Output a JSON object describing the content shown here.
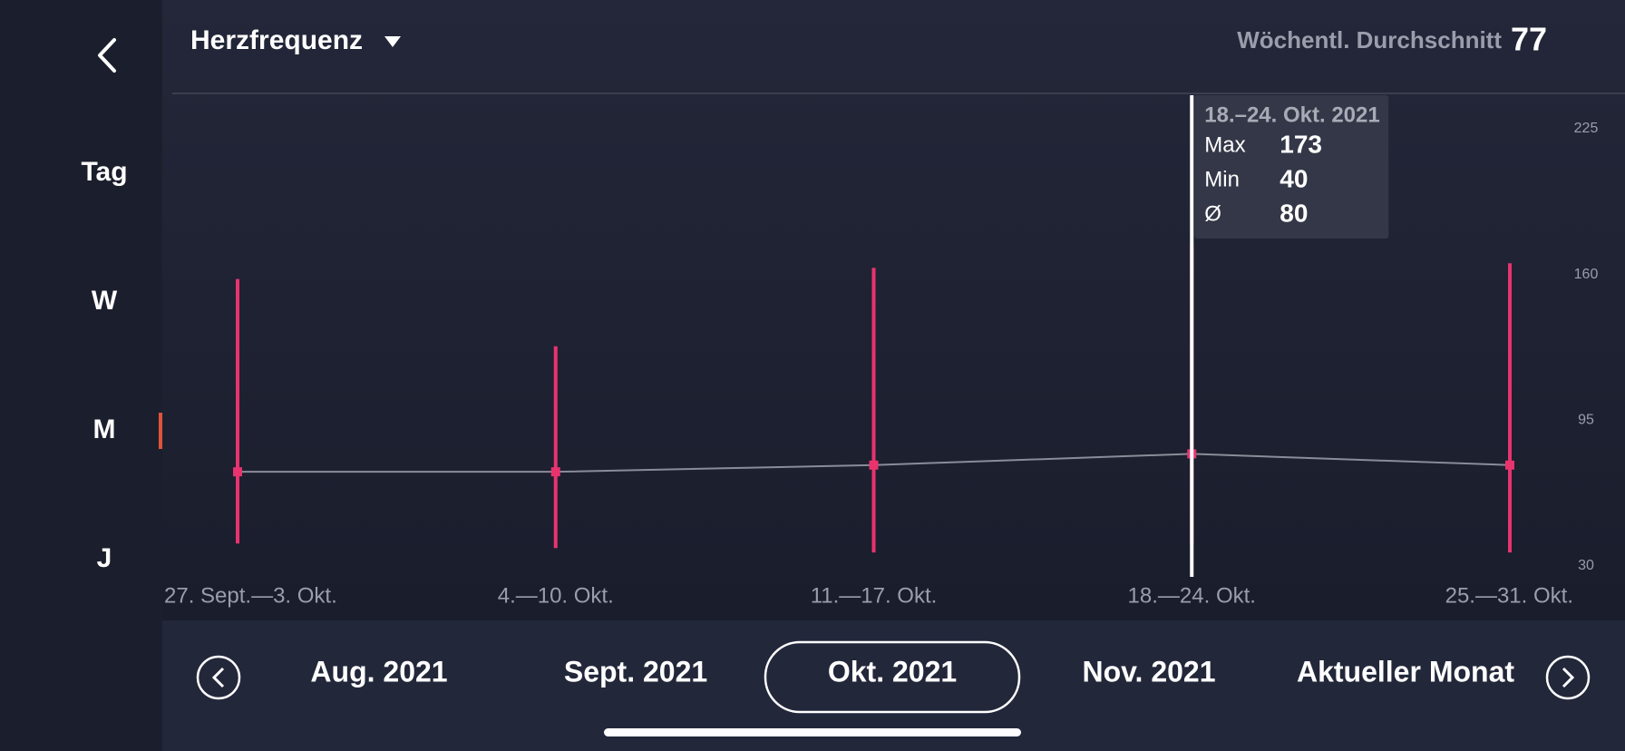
{
  "header": {
    "title": "Herzfrequenz",
    "avg_label": "Wöchentl. Durchschnitt",
    "avg_value": 77
  },
  "sidebar": {
    "items": [
      "Tag",
      "W",
      "M",
      "J"
    ],
    "selected": 2
  },
  "chart_data": {
    "type": "range",
    "categories": [
      "27. Sept.—3. Okt.",
      "4.—10. Okt.",
      "11.—17. Okt.",
      "18.—24. Okt.",
      "25.—31. Okt."
    ],
    "series": [
      {
        "name": "Max",
        "color": "#e8336f",
        "values": [
          158,
          128,
          163,
          173,
          165
        ]
      },
      {
        "name": "Min",
        "color": "#e8336f",
        "values": [
          40,
          38,
          36,
          40,
          36
        ]
      },
      {
        "name": "Ø",
        "color": "#8a8d99",
        "values": [
          72,
          72,
          75,
          80,
          75
        ]
      }
    ],
    "ylim": [
      30,
      225
    ],
    "yticks": [
      30,
      95,
      160,
      225
    ],
    "selected": 3,
    "tooltip_title": "18.–24. Okt. 2021"
  },
  "nav": {
    "months": [
      "Aug. 2021",
      "Sept. 2021",
      "Okt. 2021",
      "Nov. 2021",
      "Aktueller Monat"
    ],
    "selected": 2
  }
}
